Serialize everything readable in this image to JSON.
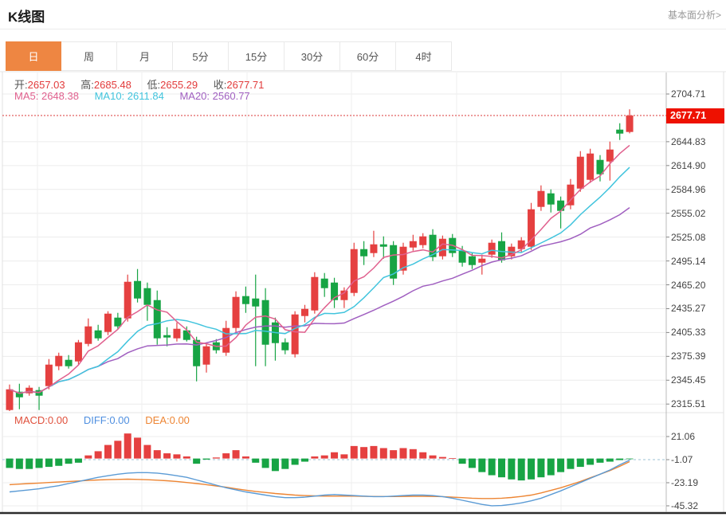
{
  "header": {
    "title": "K线图",
    "link": "基本面分析>"
  },
  "tabs": {
    "items": [
      "日",
      "周",
      "月",
      "5分",
      "15分",
      "30分",
      "60分",
      "4时"
    ],
    "active_index": 0
  },
  "quote": {
    "open_label": "开:",
    "open": "2657.03",
    "high_label": "高:",
    "high": "2685.48",
    "low_label": "低:",
    "low": "2655.29",
    "close_label": "收:",
    "close": "2677.71"
  },
  "ma_row": {
    "ma5_label": "MA5:",
    "ma5": "2648.38",
    "ma10_label": "MA10:",
    "ma10": "2611.84",
    "ma20_label": "MA20:",
    "ma20": "2560.77"
  },
  "macd_row": {
    "macd_label": "MACD:",
    "macd": "0.00",
    "diff_label": "DIFF:",
    "diff": "0.00",
    "dea_label": "DEA:",
    "dea": "0.00"
  },
  "price_axis": {
    "ticks": [
      "2704.71",
      "2644.83",
      "2614.90",
      "2584.96",
      "2555.02",
      "2525.08",
      "2495.14",
      "2465.20",
      "2435.27",
      "2405.33",
      "2375.39",
      "2345.45",
      "2315.51"
    ],
    "badge": "2677.71"
  },
  "macd_axis": {
    "ticks": [
      "21.06",
      "-1.07",
      "-23.19",
      "-45.32"
    ]
  },
  "colors": {
    "accent_orange": "#ee8642",
    "up_red": "#e54040",
    "down_green": "#17a444",
    "ma5_pink": "#e0608e",
    "ma10_cyan": "#41c4dd",
    "ma20_purple": "#a05fc0",
    "diff_blue": "#5b9bd5",
    "dea_orange": "#ed8533",
    "badge_red": "#ee1100",
    "value_red": "#e23b3b",
    "label_gray": "#555555",
    "dotted_line_red": "#e26060"
  },
  "chart_data": [
    {
      "type": "candlestick",
      "title": "K线图 daily candlesticks with MA5/MA10/MA20 overlays",
      "ylabel": "price",
      "y_axis_ticks": [
        2704.71,
        2644.83,
        2614.9,
        2584.96,
        2555.02,
        2525.08,
        2495.14,
        2465.2,
        2435.27,
        2405.33,
        2375.39,
        2345.45,
        2315.51
      ],
      "ylim": [
        2300,
        2715
      ],
      "current_price": 2677.71,
      "last_candle": {
        "open": 2657.03,
        "high": 2685.48,
        "low": 2655.29,
        "close": 2677.71
      },
      "ma_values_shown": {
        "MA5": 2648.38,
        "MA10": 2611.84,
        "MA20": 2560.77
      },
      "ma_windows": [
        5,
        10,
        20
      ],
      "candles_ohlc": [
        [
          2308,
          2340,
          2304,
          2334
        ],
        [
          2331,
          2341,
          2309,
          2324
        ],
        [
          2329,
          2339,
          2326,
          2336
        ],
        [
          2333,
          2337,
          2308,
          2326
        ],
        [
          2338,
          2372,
          2334,
          2365
        ],
        [
          2363,
          2380,
          2358,
          2376
        ],
        [
          2371,
          2377,
          2360,
          2363
        ],
        [
          2369,
          2396,
          2365,
          2393
        ],
        [
          2391,
          2423,
          2388,
          2413
        ],
        [
          2408,
          2415,
          2395,
          2398
        ],
        [
          2406,
          2432,
          2402,
          2429
        ],
        [
          2424,
          2430,
          2410,
          2413
        ],
        [
          2423,
          2478,
          2419,
          2469
        ],
        [
          2470,
          2485,
          2443,
          2448
        ],
        [
          2461,
          2468,
          2420,
          2440
        ],
        [
          2446,
          2458,
          2390,
          2398
        ],
        [
          2402,
          2412,
          2388,
          2399
        ],
        [
          2398,
          2418,
          2394,
          2410
        ],
        [
          2408,
          2413,
          2394,
          2396
        ],
        [
          2396,
          2400,
          2344,
          2363
        ],
        [
          2365,
          2392,
          2355,
          2388
        ],
        [
          2393,
          2397,
          2379,
          2383
        ],
        [
          2380,
          2420,
          2376,
          2411
        ],
        [
          2411,
          2457,
          2405,
          2450
        ],
        [
          2451,
          2463,
          2430,
          2441
        ],
        [
          2448,
          2478,
          2363,
          2438
        ],
        [
          2446,
          2461,
          2363,
          2390
        ],
        [
          2418,
          2424,
          2370,
          2392
        ],
        [
          2393,
          2398,
          2378,
          2383
        ],
        [
          2378,
          2432,
          2374,
          2428
        ],
        [
          2426,
          2440,
          2418,
          2435
        ],
        [
          2433,
          2481,
          2429,
          2475
        ],
        [
          2473,
          2480,
          2450,
          2461
        ],
        [
          2468,
          2474,
          2436,
          2446
        ],
        [
          2446,
          2462,
          2436,
          2458
        ],
        [
          2455,
          2518,
          2451,
          2510
        ],
        [
          2510,
          2520,
          2490,
          2501
        ],
        [
          2505,
          2533,
          2500,
          2516
        ],
        [
          2516,
          2526,
          2498,
          2513
        ],
        [
          2515,
          2520,
          2465,
          2473
        ],
        [
          2483,
          2518,
          2478,
          2513
        ],
        [
          2512,
          2528,
          2508,
          2520
        ],
        [
          2515,
          2530,
          2511,
          2526
        ],
        [
          2528,
          2535,
          2495,
          2500
        ],
        [
          2501,
          2527,
          2497,
          2523
        ],
        [
          2524,
          2529,
          2500,
          2505
        ],
        [
          2508,
          2514,
          2488,
          2493
        ],
        [
          2501,
          2506,
          2485,
          2490
        ],
        [
          2493,
          2503,
          2478,
          2498
        ],
        [
          2503,
          2522,
          2499,
          2518
        ],
        [
          2520,
          2531,
          2493,
          2496
        ],
        [
          2501,
          2517,
          2497,
          2513
        ],
        [
          2510,
          2525,
          2506,
          2521
        ],
        [
          2513,
          2568,
          2509,
          2560
        ],
        [
          2563,
          2590,
          2558,
          2583
        ],
        [
          2580,
          2585,
          2556,
          2566
        ],
        [
          2571,
          2576,
          2536,
          2558
        ],
        [
          2565,
          2598,
          2560,
          2591
        ],
        [
          2586,
          2633,
          2582,
          2626
        ],
        [
          2597,
          2636,
          2593,
          2630
        ],
        [
          2622,
          2628,
          2595,
          2604
        ],
        [
          2620,
          2645,
          2596,
          2635
        ],
        [
          2660,
          2668,
          2647,
          2655
        ],
        [
          2657.03,
          2685.48,
          2655.29,
          2677.71
        ]
      ]
    },
    {
      "type": "bar",
      "title": "MACD histogram with DIFF / DEA lines",
      "y_axis_ticks": [
        21.06,
        -1.07,
        -23.19,
        -45.32
      ],
      "ylim": [
        -50,
        26
      ],
      "macd_bars": [
        -9,
        -10,
        -10,
        -9,
        -8,
        -7,
        -5,
        -4,
        3,
        7,
        13,
        17,
        24,
        20,
        13,
        8,
        5,
        4,
        2,
        -5,
        -1,
        1,
        5,
        8,
        2,
        -4,
        -9,
        -12,
        -10,
        -6,
        -3,
        2,
        3,
        6,
        4,
        12,
        11,
        12,
        10,
        8,
        10,
        9,
        6,
        3,
        1.5,
        0.3,
        -5,
        -9,
        -13,
        -16,
        -18,
        -20,
        -21,
        -20,
        -18,
        -16,
        -13,
        -10,
        -8,
        -6,
        -4,
        -3,
        -1.5,
        -0.3
      ],
      "diff_line": [
        -32,
        -31,
        -30,
        -29,
        -27.5,
        -26,
        -24,
        -22,
        -20,
        -18,
        -16.5,
        -15,
        -14,
        -13.5,
        -13.5,
        -14,
        -15,
        -16.5,
        -18,
        -20.5,
        -23,
        -25.5,
        -28,
        -30,
        -32,
        -33.5,
        -35,
        -36.5,
        -37.5,
        -37.5,
        -37,
        -36,
        -35,
        -34.5,
        -35,
        -35.5,
        -36,
        -36.5,
        -36.5,
        -36,
        -35.5,
        -35,
        -35,
        -35.5,
        -36.5,
        -38,
        -40,
        -42,
        -44,
        -45.3,
        -45,
        -44,
        -42.5,
        -40.5,
        -38,
        -34.5,
        -31,
        -27,
        -23,
        -19,
        -15,
        -11,
        -6,
        -1.5
      ],
      "dea_line": [
        -25,
        -24.5,
        -24,
        -23.5,
        -23,
        -22.5,
        -22,
        -21.5,
        -21,
        -20.5,
        -20.2,
        -20,
        -19.8,
        -20,
        -20.3,
        -20.8,
        -21.3,
        -22,
        -23,
        -24,
        -25,
        -26.3,
        -27.5,
        -29,
        -30.3,
        -31.5,
        -32.5,
        -33.5,
        -34.3,
        -35,
        -35.5,
        -35.8,
        -36,
        -36,
        -36,
        -36,
        -36.2,
        -36.3,
        -36.4,
        -36.4,
        -36.3,
        -36.2,
        -36.2,
        -36.3,
        -36.5,
        -37,
        -37.5,
        -38,
        -38.3,
        -38.3,
        -38,
        -37.3,
        -36.3,
        -35,
        -33,
        -30.5,
        -28,
        -25,
        -22,
        -18.5,
        -15,
        -11.5,
        -7.5,
        -3
      ]
    }
  ]
}
